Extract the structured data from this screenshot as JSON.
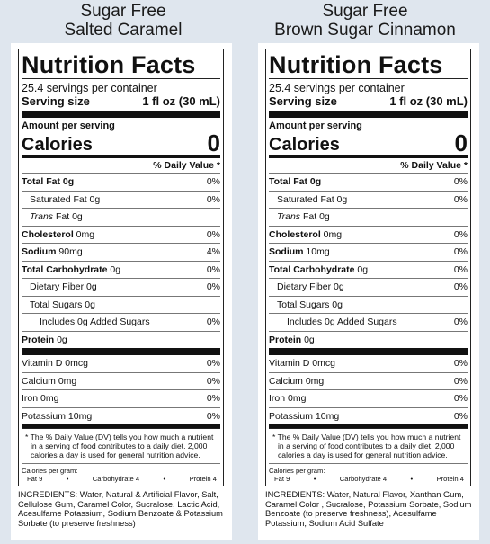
{
  "products": [
    {
      "flavor_line1": "Sugar Free",
      "flavor_line2": "Salted Caramel",
      "title": "Nutrition Facts",
      "servings": "25.4 servings per container",
      "serving_size_label": "Serving size",
      "serving_size_value": "1 fl oz (30 mL)",
      "amount_per_serving": "Amount per serving",
      "calories_label": "Calories",
      "calories_value": "0",
      "dv_header": "% Daily Value *",
      "total_fat": {
        "label": "Total Fat",
        "amount": "0g",
        "dv": "0%"
      },
      "saturated_fat": {
        "label": "Saturated Fat 0g",
        "dv": "0%"
      },
      "trans_fat": {
        "label_italic": "Trans",
        "label_rest": " Fat 0g"
      },
      "cholesterol": {
        "label": "Cholesterol",
        "amount": " 0mg",
        "dv": "0%"
      },
      "sodium": {
        "label": "Sodium",
        "amount": " 90mg",
        "dv": "4%"
      },
      "total_carb": {
        "label": "Total Carbohydrate",
        "amount": " 0g",
        "dv": "0%"
      },
      "fiber": {
        "label": "Dietary Fiber 0g",
        "dv": "0%"
      },
      "total_sugars": {
        "label": "Total Sugars 0g"
      },
      "added_sugars": {
        "label": "Includes 0g Added Sugars",
        "dv": "0%"
      },
      "protein": {
        "label": "Protein",
        "amount": " 0g"
      },
      "vitamin_d": {
        "label": "Vitamin D 0mcg",
        "dv": "0%"
      },
      "calcium": {
        "label": "Calcium 0mg",
        "dv": "0%"
      },
      "iron": {
        "label": "Iron 0mg",
        "dv": "0%"
      },
      "potassium": {
        "label": "Potassium 10mg",
        "dv": "0%"
      },
      "footnote": "* The % Daily Value (DV) tells you how much a nutrient in a serving of food contributes to a daily diet. 2,000 calories a day is used for general nutrition advice.",
      "calories_per_gram": "Calories per gram:",
      "cpg_fat": "Fat 9",
      "cpg_bullet": "•",
      "cpg_carb": "Carbohydrate 4",
      "cpg_protein": "Protein 4",
      "ingredients": "INGREDIENTS: Water, Natural & Artificial Flavor, Salt, Cellulose Gum, Caramel Color, Sucralose, Lactic Acid, Acesulfame Potassium, Sodium Benzoate & Potassium Sorbate (to preserve freshness)"
    },
    {
      "flavor_line1": "Sugar Free",
      "flavor_line2": "Brown Sugar Cinnamon",
      "title": "Nutrition Facts",
      "servings": "25.4 servings per container",
      "serving_size_label": "Serving size",
      "serving_size_value": "1 fl oz (30 mL)",
      "amount_per_serving": "Amount per serving",
      "calories_label": "Calories",
      "calories_value": "0",
      "dv_header": "% Daily Value *",
      "total_fat": {
        "label": "Total Fat",
        "amount": "0g",
        "dv": "0%"
      },
      "saturated_fat": {
        "label": "Saturated Fat 0g",
        "dv": "0%"
      },
      "trans_fat": {
        "label_italic": "Trans",
        "label_rest": " Fat 0g"
      },
      "cholesterol": {
        "label": "Cholesterol",
        "amount": " 0mg",
        "dv": "0%"
      },
      "sodium": {
        "label": "Sodium",
        "amount": " 10mg",
        "dv": "0%"
      },
      "total_carb": {
        "label": "Total Carbohydrate",
        "amount": " 0g",
        "dv": "0%"
      },
      "fiber": {
        "label": "Dietary Fiber 0g",
        "dv": "0%"
      },
      "total_sugars": {
        "label": "Total Sugars 0g"
      },
      "added_sugars": {
        "label": "Includes 0g Added Sugars",
        "dv": "0%"
      },
      "protein": {
        "label": "Protein",
        "amount": " 0g"
      },
      "vitamin_d": {
        "label": "Vitamin D 0mcg",
        "dv": "0%"
      },
      "calcium": {
        "label": "Calcium 0mg",
        "dv": "0%"
      },
      "iron": {
        "label": "Iron 0mg",
        "dv": "0%"
      },
      "potassium": {
        "label": "Potassium 10mg",
        "dv": "0%"
      },
      "footnote": "* The % Daily Value (DV) tells you how much a nutrient in a serving of food contributes to a daily diet. 2,000 calories a day is used for general nutrition advice.",
      "calories_per_gram": "Calories per gram:",
      "cpg_fat": "Fat 9",
      "cpg_bullet": "•",
      "cpg_carb": "Carbohydrate 4",
      "cpg_protein": "Protein 4",
      "ingredients": "INGREDIENTS: Water, Natural Flavor, Xanthan Gum, Caramel Color , Sucralose, Potassium Sorbate, Sodium Benzoate (to preserve freshness), Acesulfame Potassium, Sodium Acid Sulfate"
    }
  ]
}
